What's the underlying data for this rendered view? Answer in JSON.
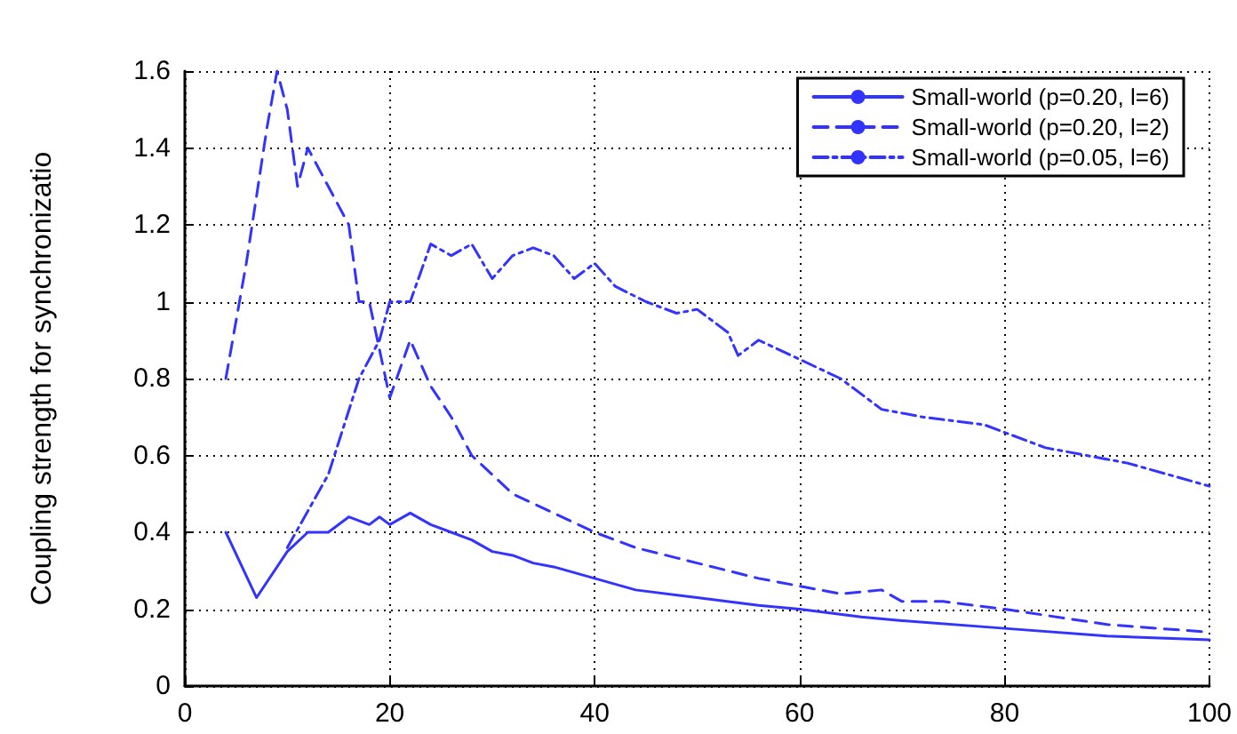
{
  "chart_data": {
    "type": "line",
    "ylabel": "Coupling strength for synchronizatio",
    "xlim": [
      0,
      100
    ],
    "xticks": [
      0,
      20,
      40,
      60,
      80,
      100
    ],
    "ylim": [
      0,
      1.6
    ],
    "yticks": [
      0,
      0.2,
      0.4,
      0.6,
      0.8,
      1,
      1.2,
      1.4,
      1.6
    ],
    "grid": true,
    "legend": "top right",
    "marker": "none",
    "series": [
      {
        "name": "Small-world (p=0.20, l=6)",
        "color": "#3333ff",
        "line_style": "solid",
        "x": [
          4,
          7,
          10,
          12,
          14,
          16,
          18,
          19,
          20,
          22,
          24,
          26,
          28,
          30,
          32,
          34,
          36,
          40,
          44,
          50,
          56,
          60,
          66,
          70,
          80,
          90,
          100
        ],
        "values": [
          0.4,
          0.23,
          0.35,
          0.4,
          0.4,
          0.44,
          0.42,
          0.44,
          0.42,
          0.45,
          0.42,
          0.4,
          0.38,
          0.35,
          0.34,
          0.32,
          0.31,
          0.28,
          0.25,
          0.23,
          0.21,
          0.2,
          0.18,
          0.17,
          0.15,
          0.13,
          0.12
        ]
      },
      {
        "name": "Small-world (p=0.20, l=2)",
        "color": "#3333ff",
        "line_style": "dashed",
        "x": [
          4,
          6,
          8,
          9,
          10,
          11,
          12,
          14,
          16,
          17,
          18,
          20,
          22,
          24,
          26,
          28,
          30,
          32,
          36,
          40,
          44,
          50,
          56,
          60,
          64,
          68,
          70,
          74,
          80,
          90,
          100
        ],
        "values": [
          0.8,
          1.1,
          1.45,
          1.6,
          1.5,
          1.3,
          1.4,
          1.3,
          1.2,
          1.0,
          1.0,
          0.75,
          0.9,
          0.78,
          0.7,
          0.6,
          0.55,
          0.5,
          0.45,
          0.4,
          0.36,
          0.32,
          0.28,
          0.26,
          0.24,
          0.25,
          0.22,
          0.22,
          0.2,
          0.16,
          0.14
        ]
      },
      {
        "name": "Small-world (p=0.05, l=6)",
        "color": "#3333ff",
        "line_style": "dashdot",
        "x": [
          10,
          14,
          17,
          19,
          20,
          22,
          24,
          26,
          28,
          30,
          32,
          34,
          36,
          38,
          40,
          42,
          45,
          48,
          50,
          53,
          54,
          56,
          60,
          64,
          68,
          72,
          78,
          80,
          84,
          88,
          92,
          96,
          100
        ],
        "values": [
          0.36,
          0.55,
          0.8,
          0.9,
          1.0,
          1.0,
          1.15,
          1.12,
          1.15,
          1.06,
          1.12,
          1.14,
          1.12,
          1.06,
          1.1,
          1.04,
          1.0,
          0.97,
          0.98,
          0.92,
          0.86,
          0.9,
          0.85,
          0.8,
          0.72,
          0.7,
          0.68,
          0.66,
          0.62,
          0.6,
          0.58,
          0.55,
          0.52
        ]
      }
    ]
  }
}
